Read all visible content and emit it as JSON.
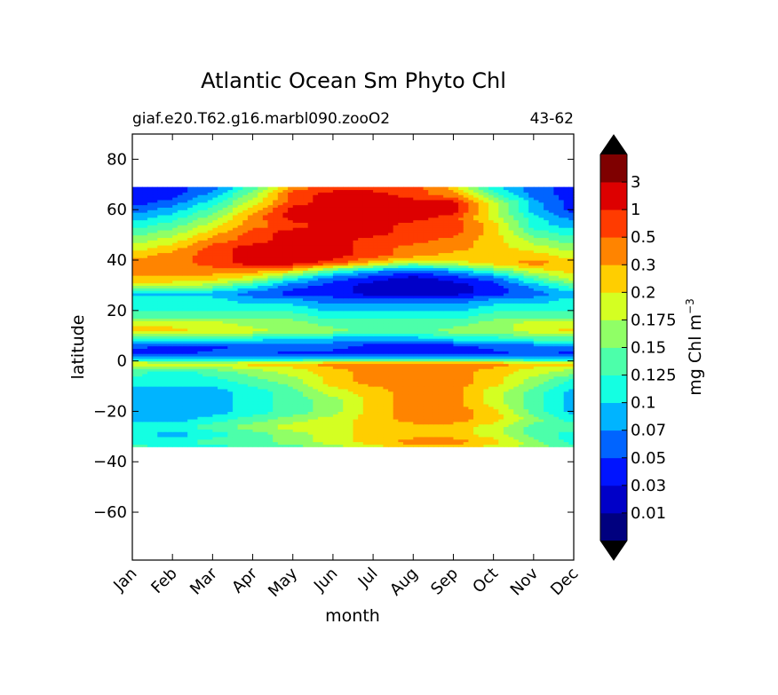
{
  "chart_data": {
    "type": "heatmap",
    "title": "Atlantic Ocean Sm Phyto Chl",
    "subtitle_left": "giaf.e20.T62.g16.marbl090.zooO2",
    "subtitle_right": "43-62",
    "xlabel": "month",
    "ylabel": "latitude",
    "x_categories": [
      "Jan",
      "Feb",
      "Mar",
      "Apr",
      "May",
      "Jun",
      "Jul",
      "Aug",
      "Sep",
      "Oct",
      "Nov",
      "Dec"
    ],
    "xlim": [
      0,
      11
    ],
    "ylim": [
      -79,
      90
    ],
    "y_ticks": [
      80,
      60,
      40,
      20,
      0,
      -20,
      -40,
      -60
    ],
    "data_lat_range": [
      -34,
      69
    ],
    "colorbar": {
      "label": "mg Chl m",
      "label_superscript": "−3",
      "levels": [
        "0.01",
        "0.03",
        "0.05",
        "0.07",
        "0.1",
        "0.125",
        "0.15",
        "0.175",
        "0.2",
        "0.3",
        "0.5",
        "1",
        "3"
      ],
      "colors": [
        "#00007f",
        "#0000c8",
        "#0014ff",
        "#0064ff",
        "#00b4ff",
        "#14ffe2",
        "#4cffaa",
        "#90ff66",
        "#d4ff22",
        "#ffce00",
        "#ff8400",
        "#ff3b00",
        "#dd0000",
        "#7f0000"
      ],
      "extend": "both"
    },
    "lat_profiles": [
      {
        "lat": -34,
        "values": [
          6,
          5,
          5,
          6,
          6,
          7,
          8,
          9,
          9,
          8,
          7,
          6
        ]
      },
      {
        "lat": -32,
        "values": [
          5,
          5,
          6,
          6,
          7,
          8,
          9,
          10,
          10,
          9,
          7,
          5
        ]
      },
      {
        "lat": -29,
        "values": [
          5,
          4,
          5,
          6,
          7,
          8,
          9,
          9,
          9,
          8,
          6,
          5
        ]
      },
      {
        "lat": -26,
        "values": [
          5,
          5,
          6,
          7,
          8,
          8,
          9,
          9,
          9,
          8,
          6,
          6
        ]
      },
      {
        "lat": -23,
        "values": [
          4,
          4,
          5,
          6,
          7,
          8,
          9,
          10,
          10,
          9,
          7,
          5
        ]
      },
      {
        "lat": -20,
        "values": [
          4,
          4,
          4,
          5,
          6,
          7,
          9,
          10,
          10,
          9,
          6,
          4
        ]
      },
      {
        "lat": -16,
        "values": [
          4,
          4,
          4,
          5,
          6,
          7,
          9,
          10,
          10,
          8,
          6,
          4
        ]
      },
      {
        "lat": -12,
        "values": [
          4,
          4,
          4,
          5,
          6,
          8,
          9,
          10,
          10,
          8,
          6,
          4
        ]
      },
      {
        "lat": -8,
        "values": [
          5,
          5,
          5,
          6,
          7,
          9,
          10,
          10,
          10,
          9,
          7,
          5
        ]
      },
      {
        "lat": -4,
        "values": [
          6,
          5,
          6,
          7,
          8,
          9,
          10,
          10,
          10,
          9,
          8,
          7
        ]
      },
      {
        "lat": -1,
        "values": [
          9,
          8,
          8,
          9,
          9,
          10,
          10,
          10,
          10,
          10,
          9,
          9
        ]
      },
      {
        "lat": 1,
        "values": [
          4,
          4,
          4,
          4,
          4,
          5,
          5,
          5,
          5,
          5,
          4,
          4
        ]
      },
      {
        "lat": 3,
        "values": [
          2,
          2,
          3,
          3,
          2,
          2,
          2,
          2,
          2,
          2,
          3,
          2
        ]
      },
      {
        "lat": 6,
        "values": [
          3,
          2,
          2,
          3,
          3,
          3,
          2,
          2,
          2,
          3,
          3,
          3
        ]
      },
      {
        "lat": 9,
        "values": [
          6,
          5,
          5,
          5,
          4,
          4,
          4,
          4,
          5,
          5,
          6,
          6
        ]
      },
      {
        "lat": 12,
        "values": [
          9,
          9,
          8,
          8,
          7,
          7,
          6,
          6,
          7,
          7,
          8,
          9
        ]
      },
      {
        "lat": 15,
        "values": [
          8,
          8,
          8,
          7,
          7,
          6,
          6,
          6,
          6,
          7,
          8,
          8
        ]
      },
      {
        "lat": 18,
        "values": [
          6,
          6,
          6,
          6,
          6,
          5,
          5,
          5,
          5,
          6,
          6,
          6
        ]
      },
      {
        "lat": 21,
        "values": [
          5,
          5,
          5,
          5,
          5,
          4,
          4,
          4,
          4,
          5,
          5,
          5
        ]
      },
      {
        "lat": 24,
        "values": [
          5,
          5,
          5,
          4,
          4,
          3,
          3,
          3,
          3,
          4,
          4,
          5
        ]
      },
      {
        "lat": 27,
        "values": [
          4,
          4,
          4,
          3,
          2,
          2,
          1,
          1,
          1,
          2,
          3,
          4
        ]
      },
      {
        "lat": 30,
        "values": [
          8,
          8,
          7,
          5,
          3,
          2,
          1,
          1,
          1,
          2,
          4,
          6
        ]
      },
      {
        "lat": 33,
        "values": [
          9,
          9,
          9,
          8,
          5,
          3,
          2,
          1,
          2,
          3,
          6,
          8
        ]
      },
      {
        "lat": 36,
        "values": [
          10,
          10,
          10,
          10,
          9,
          6,
          4,
          3,
          4,
          6,
          8,
          9
        ]
      },
      {
        "lat": 39,
        "values": [
          10,
          10,
          11,
          12,
          12,
          11,
          9,
          7,
          8,
          9,
          10,
          9
        ]
      },
      {
        "lat": 42,
        "values": [
          9,
          10,
          11,
          12,
          12,
          12,
          11,
          10,
          9,
          9,
          9,
          8
        ]
      },
      {
        "lat": 45,
        "values": [
          8,
          9,
          11,
          12,
          12,
          12,
          11,
          10,
          10,
          9,
          8,
          7
        ]
      },
      {
        "lat": 48,
        "values": [
          7,
          8,
          10,
          11,
          12,
          12,
          11,
          11,
          10,
          9,
          7,
          6
        ]
      },
      {
        "lat": 51,
        "values": [
          6,
          7,
          9,
          11,
          12,
          12,
          12,
          11,
          11,
          9,
          6,
          5
        ]
      },
      {
        "lat": 54,
        "values": [
          5,
          6,
          8,
          10,
          11,
          12,
          12,
          11,
          11,
          9,
          5,
          4
        ]
      },
      {
        "lat": 57,
        "values": [
          4,
          5,
          7,
          10,
          12,
          12,
          12,
          12,
          11,
          8,
          5,
          3
        ]
      },
      {
        "lat": 60,
        "values": [
          3,
          4,
          6,
          9,
          12,
          12,
          12,
          12,
          12,
          8,
          4,
          2
        ]
      },
      {
        "lat": 63,
        "values": [
          2,
          3,
          5,
          8,
          11,
          12,
          12,
          12,
          12,
          8,
          4,
          2
        ]
      },
      {
        "lat": 66,
        "values": [
          2,
          2,
          4,
          7,
          11,
          12,
          12,
          11,
          10,
          6,
          3,
          2
        ]
      },
      {
        "lat": 69,
        "values": [
          2,
          2,
          3,
          6,
          10,
          11,
          11,
          11,
          9,
          5,
          3,
          2
        ]
      }
    ]
  }
}
